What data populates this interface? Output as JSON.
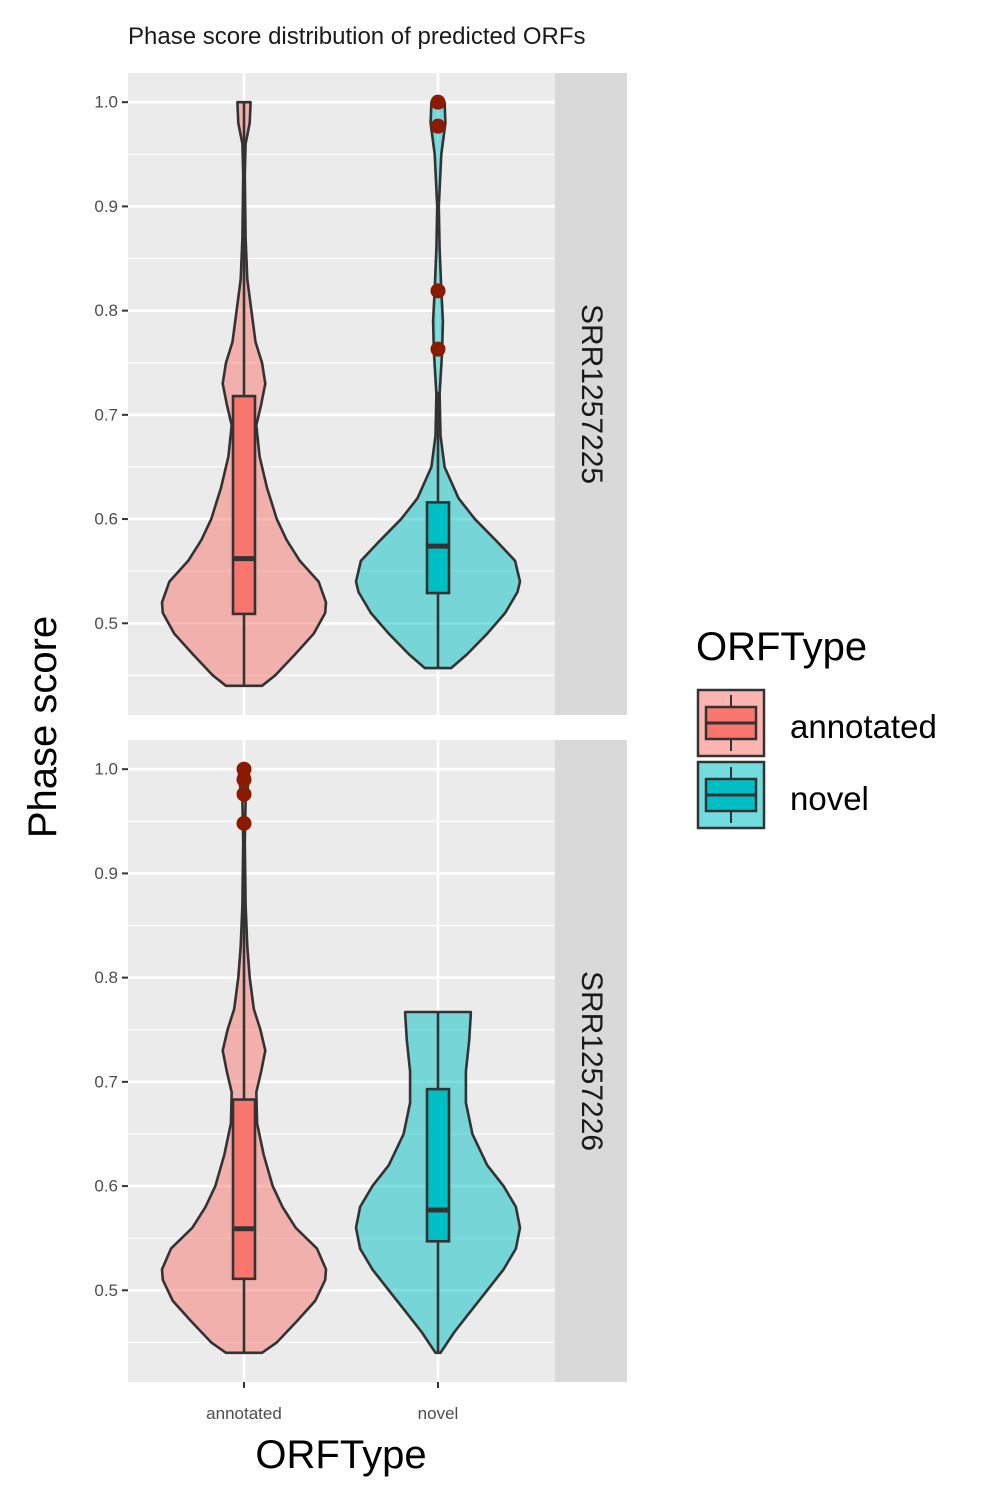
{
  "chart_data": {
    "type": "violin",
    "title": "Phase score distribution of predicted ORFs",
    "xlabel": "ORFType",
    "ylabel": "Phase score",
    "categories": [
      "annotated",
      "novel"
    ],
    "ylim": [
      0.412,
      1.028
    ],
    "yticks": [
      0.5,
      0.6,
      0.7,
      0.8,
      0.9,
      1.0
    ],
    "ytick_labels": [
      "0.5",
      "0.6",
      "0.7",
      "0.8",
      "0.9",
      "1.0"
    ],
    "grid": true,
    "legend": {
      "title": "ORFType",
      "position": "right",
      "entries": [
        {
          "label": "annotated",
          "color": "#F8766D"
        },
        {
          "label": "novel",
          "color": "#00BFC4"
        }
      ]
    },
    "colors": {
      "annotated": "#F8766D",
      "novel": "#00BFC4",
      "outlier": "#8B1A00",
      "panel_bg": "#EBEBEB",
      "strip_bg": "#D9D9D9"
    },
    "facets": [
      {
        "label": "SRR1257225",
        "groups": [
          {
            "category": "annotated",
            "box": {
              "q1": 0.509,
              "median": 0.562,
              "q3": 0.718,
              "whisker_low": 0.44,
              "whisker_high": 1.0
            },
            "outliers": [],
            "violin_profile": [
              [
                0.44,
                0.22
              ],
              [
                0.45,
                0.38
              ],
              [
                0.47,
                0.62
              ],
              [
                0.49,
                0.85
              ],
              [
                0.51,
                0.99
              ],
              [
                0.52,
                1.0
              ],
              [
                0.54,
                0.91
              ],
              [
                0.56,
                0.68
              ],
              [
                0.58,
                0.52
              ],
              [
                0.6,
                0.4
              ],
              [
                0.63,
                0.28
              ],
              [
                0.66,
                0.19
              ],
              [
                0.69,
                0.15
              ],
              [
                0.71,
                0.21
              ],
              [
                0.73,
                0.26
              ],
              [
                0.75,
                0.22
              ],
              [
                0.77,
                0.14
              ],
              [
                0.8,
                0.09
              ],
              [
                0.83,
                0.04
              ],
              [
                0.87,
                0.02
              ],
              [
                0.93,
                0.01
              ],
              [
                0.96,
                0.02
              ],
              [
                0.98,
                0.07
              ],
              [
                1.0,
                0.08
              ]
            ]
          },
          {
            "category": "novel",
            "box": {
              "q1": 0.529,
              "median": 0.574,
              "q3": 0.616,
              "whisker_low": 0.457,
              "whisker_high": 0.722
            },
            "outliers": [
              0.763,
              0.819,
              0.977,
              1.0
            ],
            "violin_profile": [
              [
                0.457,
                0.16
              ],
              [
                0.47,
                0.35
              ],
              [
                0.49,
                0.6
              ],
              [
                0.51,
                0.82
              ],
              [
                0.53,
                0.97
              ],
              [
                0.54,
                1.0
              ],
              [
                0.56,
                0.94
              ],
              [
                0.58,
                0.7
              ],
              [
                0.6,
                0.45
              ],
              [
                0.62,
                0.25
              ],
              [
                0.65,
                0.08
              ],
              [
                0.68,
                0.03
              ],
              [
                0.72,
                0.02
              ],
              [
                0.76,
                0.05
              ],
              [
                0.79,
                0.06
              ],
              [
                0.82,
                0.04
              ],
              [
                0.86,
                0.02
              ],
              [
                0.9,
                0.01
              ],
              [
                0.95,
                0.04
              ],
              [
                0.98,
                0.09
              ],
              [
                1.0,
                0.08
              ]
            ]
          }
        ]
      },
      {
        "label": "SRR1257226",
        "groups": [
          {
            "category": "annotated",
            "box": {
              "q1": 0.511,
              "median": 0.559,
              "q3": 0.683,
              "whisker_low": 0.44,
              "whisker_high": 0.94
            },
            "outliers": [
              0.948,
              0.976,
              0.99,
              1.0
            ],
            "violin_profile": [
              [
                0.44,
                0.22
              ],
              [
                0.45,
                0.4
              ],
              [
                0.47,
                0.64
              ],
              [
                0.49,
                0.87
              ],
              [
                0.51,
                0.99
              ],
              [
                0.52,
                1.0
              ],
              [
                0.54,
                0.89
              ],
              [
                0.56,
                0.63
              ],
              [
                0.58,
                0.47
              ],
              [
                0.6,
                0.35
              ],
              [
                0.63,
                0.24
              ],
              [
                0.66,
                0.16
              ],
              [
                0.69,
                0.15
              ],
              [
                0.71,
                0.21
              ],
              [
                0.73,
                0.26
              ],
              [
                0.75,
                0.2
              ],
              [
                0.77,
                0.12
              ],
              [
                0.8,
                0.07
              ],
              [
                0.83,
                0.04
              ],
              [
                0.87,
                0.02
              ],
              [
                0.93,
                0.01
              ],
              [
                0.97,
                0.02
              ],
              [
                0.99,
                0.06
              ],
              [
                1.0,
                0.06
              ]
            ]
          },
          {
            "category": "novel",
            "box": {
              "q1": 0.547,
              "median": 0.577,
              "q3": 0.693,
              "whisker_low": 0.44,
              "whisker_high": 0.767
            },
            "outliers": [],
            "violin_profile": [
              [
                0.44,
                0.03
              ],
              [
                0.46,
                0.2
              ],
              [
                0.48,
                0.4
              ],
              [
                0.5,
                0.6
              ],
              [
                0.52,
                0.8
              ],
              [
                0.54,
                0.95
              ],
              [
                0.56,
                1.0
              ],
              [
                0.58,
                0.95
              ],
              [
                0.6,
                0.8
              ],
              [
                0.62,
                0.6
              ],
              [
                0.65,
                0.42
              ],
              [
                0.68,
                0.34
              ],
              [
                0.71,
                0.34
              ],
              [
                0.74,
                0.38
              ],
              [
                0.765,
                0.4
              ],
              [
                0.767,
                0.4
              ]
            ]
          }
        ]
      }
    ]
  }
}
